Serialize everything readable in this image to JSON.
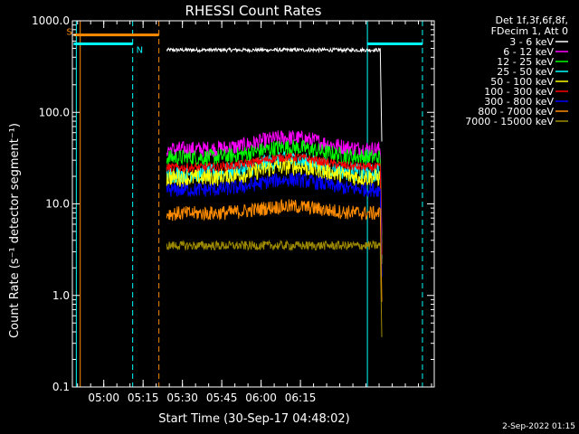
{
  "chart_data": {
    "type": "line",
    "title": "RHESSI Count Rates",
    "xlabel": "Start Time (30-Sep-17 04:48:02)",
    "ylabel": "Count Rate (s⁻¹ detector segment⁻¹)",
    "yscale": "log",
    "ylim": [
      0.1,
      1000
    ],
    "xlim_minutes_after_start": [
      0,
      138
    ],
    "y_tick_labels": [
      "0.1",
      "1.0",
      "10.0",
      "100.0",
      "1000.0"
    ],
    "x_tick_labels": [
      "05:00",
      "05:15",
      "05:30",
      "05:45",
      "06:00",
      "06:15"
    ],
    "x_tick_minutes_after_start": [
      11.97,
      26.97,
      41.97,
      56.97,
      71.97,
      86.97
    ],
    "legend_header": [
      "Det 1f,3f,6f,8f,",
      "FDecim 1, Att 0"
    ],
    "legend_placement": "right, outside plot",
    "series": [
      {
        "name": "3 - 6 keV",
        "color": "#ffffff",
        "level": 480,
        "noise": 0.02,
        "dip_start": 117.5,
        "dip_end": 118.5
      },
      {
        "name": "6 - 12 keV",
        "color": "#ff00ff",
        "level": 45,
        "noise": 0.09,
        "bump": 0.25
      },
      {
        "name": "12 - 25 keV",
        "color": "#00ff00",
        "level": 36,
        "noise": 0.09,
        "bump": 0.22
      },
      {
        "name": "25 - 50 keV",
        "color": "#00ffff",
        "level": 25,
        "noise": 0.1,
        "bump": 0.28
      },
      {
        "name": "50 - 100 keV",
        "color": "#ffff00",
        "level": 22,
        "noise": 0.1,
        "bump": 0.25
      },
      {
        "name": "100 - 300 keV",
        "color": "#ff0000",
        "level": 28,
        "noise": 0.05,
        "bump": 0.22
      },
      {
        "name": "300 - 800 keV",
        "color": "#0000ff",
        "level": 16,
        "noise": 0.08,
        "bump": 0.22
      },
      {
        "name": "800 - 7000 keV",
        "color": "#ff8c00",
        "level": 8.5,
        "noise": 0.08,
        "bump": 0.15
      },
      {
        "name": "7000 - 15000 keV",
        "color": "#9e8a00",
        "level": 3.5,
        "noise": 0.05
      }
    ],
    "data_window_minutes": [
      36.0,
      117.5
    ],
    "saa_flag": {
      "label": "S",
      "color": "#ff8c00",
      "start": 0.5,
      "end": 33.0,
      "level": 700
    },
    "night_flag": {
      "label": "N",
      "color": "#00ffff",
      "start": 0.5,
      "end": 23.0,
      "level": 560
    },
    "night_flag_2": {
      "color": "#00ffff",
      "start": 112.5,
      "end": 133.5,
      "level": 560
    },
    "vertical_markers": [
      {
        "color": "#00ffff",
        "minute": 1.5,
        "style": "solid"
      },
      {
        "color": "#00ffff",
        "minute": 23.0,
        "style": "dashed"
      },
      {
        "color": "#ff8c00",
        "minute": 33.0,
        "style": "dashed"
      },
      {
        "color": "#ff8c00",
        "minute": 3.0,
        "style": "solid"
      },
      {
        "color": "#00ffff",
        "minute": 112.5,
        "style": "solid"
      },
      {
        "color": "#00ffff",
        "minute": 133.5,
        "style": "dashed"
      }
    ]
  },
  "footer_timestamp": "2-Sep-2022 01:15"
}
